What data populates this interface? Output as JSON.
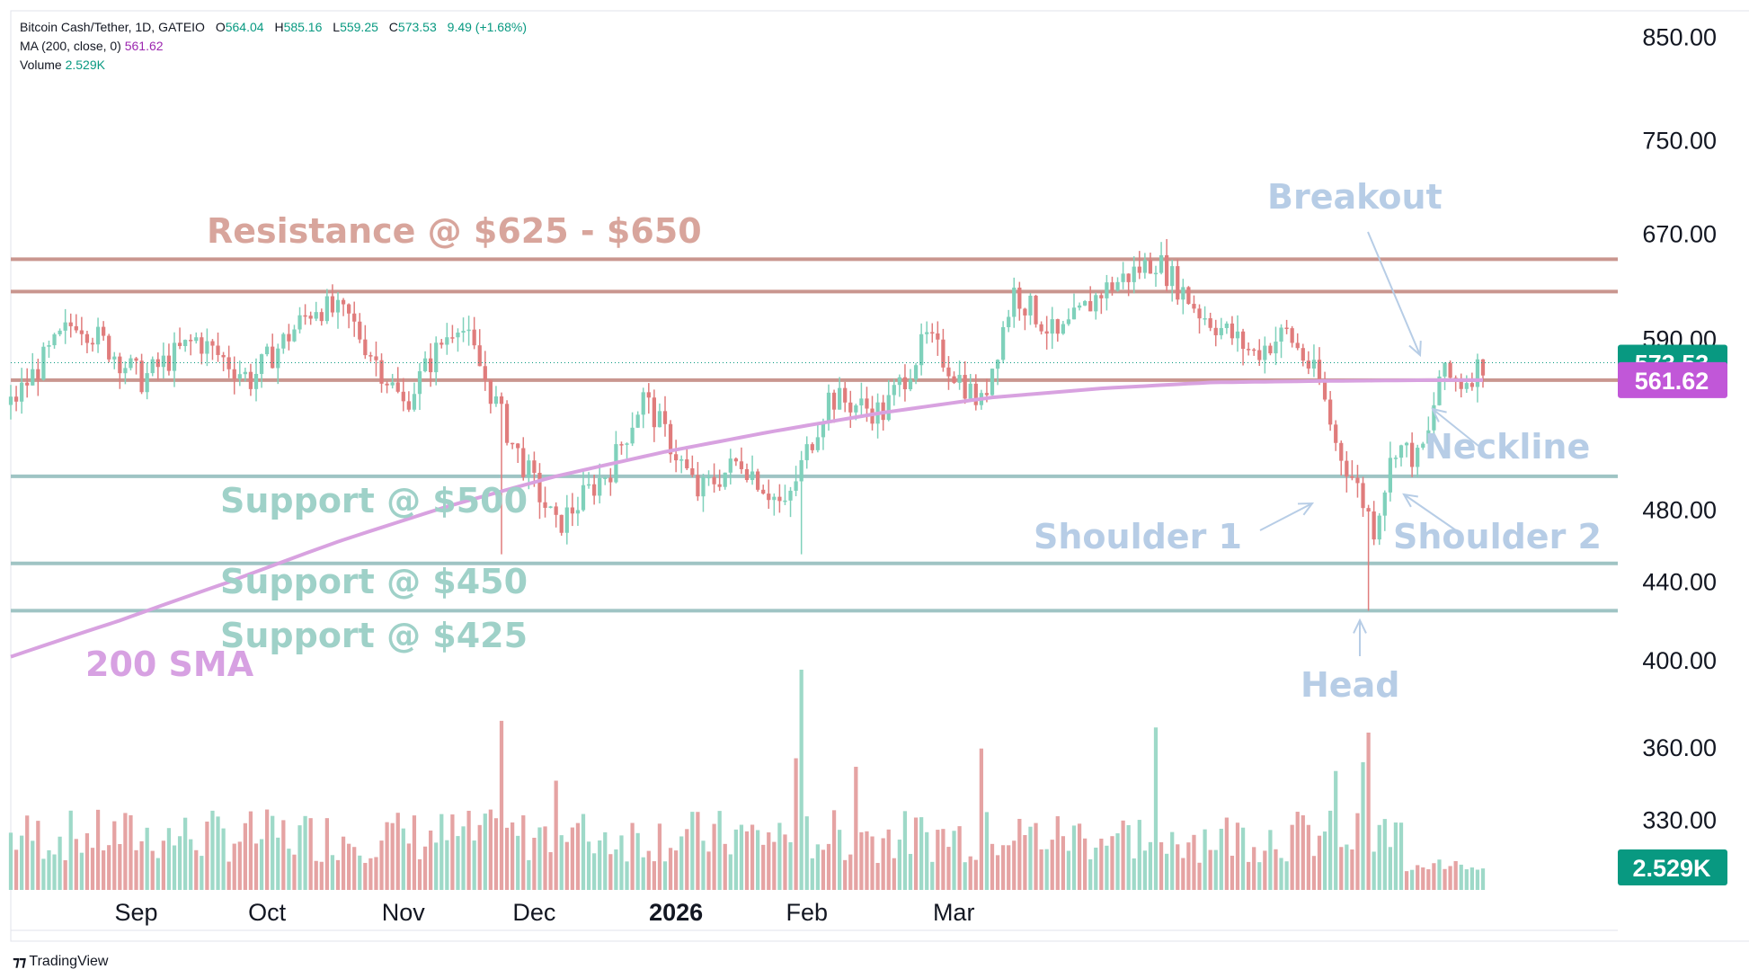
{
  "legend": {
    "symbol": "Bitcoin Cash/Tether, 1D, GATEIO",
    "o_label": "O",
    "o": "564.04",
    "h_label": "H",
    "h": "585.16",
    "l_label": "L",
    "l": "559.25",
    "c_label": "C",
    "c": "573.53",
    "change": "9.49 (+1.68%)",
    "ma_label": "MA (200, close, 0)",
    "ma_value": "561.62",
    "volume_label": "Volume",
    "volume_value": "2.529K"
  },
  "branding": {
    "logo_text": "TradingView"
  },
  "colors": {
    "up": "#7fd1bb",
    "down": "#e07c7c",
    "up_vol": "#9ed9c8",
    "down_vol": "#e5a3a3",
    "resistance": "#c9968f",
    "support": "#9fc4c4",
    "sma": "#d8a2e0",
    "annotation_blue": "#b7cde6",
    "annotation_red": "#d8a59c",
    "annotation_green": "#9fd1c8",
    "annotation_purple": "#d7a1e2",
    "price_tag_green": "#089981",
    "price_tag_purple": "#c157d8",
    "volume_tag": "#089981",
    "axis_text": "#131722"
  },
  "chart_data": {
    "type": "candlestick",
    "title": "Bitcoin Cash/Tether, 1D, GATEIO",
    "x_axis": {
      "ticks": [
        "Sep",
        "Oct",
        "Nov",
        "Dec",
        "2026",
        "Feb",
        "Mar"
      ]
    },
    "y_axis": {
      "scale": "log",
      "ticks": [
        "850.00",
        "750.00",
        "670.00",
        "590.00",
        "480.00",
        "440.00",
        "400.00",
        "360.00",
        "330.00"
      ],
      "range": [
        300,
        870
      ]
    },
    "last_price": {
      "value": 573.53,
      "label": "573.53"
    },
    "sma_tag": {
      "value": 561.62,
      "label": "561.62"
    },
    "volume_tag": {
      "label": "2.529K"
    },
    "horizontal_levels": [
      {
        "name": "resistance-upper",
        "value": 650,
        "kind": "resistance"
      },
      {
        "name": "resistance-lower",
        "value": 625,
        "kind": "resistance"
      },
      {
        "name": "neckline",
        "value": 561.62,
        "kind": "resistance"
      },
      {
        "name": "support-500",
        "value": 500,
        "kind": "support"
      },
      {
        "name": "support-450",
        "value": 450,
        "kind": "support"
      },
      {
        "name": "support-425",
        "value": 425,
        "kind": "support"
      }
    ],
    "annotations": [
      {
        "name": "resistance-label",
        "text": "Resistance @ $625 - $650",
        "color": "red"
      },
      {
        "name": "support-500-label",
        "text": "Support @ $500",
        "color": "green"
      },
      {
        "name": "support-450-label",
        "text": "Support @ $450",
        "color": "green"
      },
      {
        "name": "support-425-label",
        "text": "Support @ $425",
        "color": "green"
      },
      {
        "name": "sma-label",
        "text": "200 SMA",
        "color": "purple"
      },
      {
        "name": "breakout-label",
        "text": "Breakout",
        "color": "blue"
      },
      {
        "name": "neckline-label",
        "text": "Neckline",
        "color": "blue"
      },
      {
        "name": "shoulder1-label",
        "text": "Shoulder 1",
        "color": "blue"
      },
      {
        "name": "shoulder2-label",
        "text": "Shoulder 2",
        "color": "blue"
      },
      {
        "name": "head-label",
        "text": "Head",
        "color": "blue"
      }
    ],
    "sma_anchors": [
      {
        "day": 0,
        "value": 402
      },
      {
        "day": 20,
        "value": 420
      },
      {
        "day": 40,
        "value": 440
      },
      {
        "day": 60,
        "value": 462
      },
      {
        "day": 80,
        "value": 482
      },
      {
        "day": 100,
        "value": 500
      },
      {
        "day": 120,
        "value": 515
      },
      {
        "day": 140,
        "value": 528
      },
      {
        "day": 160,
        "value": 540
      },
      {
        "day": 180,
        "value": 550
      },
      {
        "day": 200,
        "value": 556
      },
      {
        "day": 220,
        "value": 560
      },
      {
        "day": 240,
        "value": 561
      },
      {
        "day": 260,
        "value": 561.6
      }
    ],
    "candle_anchors": [
      {
        "day": 0,
        "value": 545
      },
      {
        "day": 12,
        "value": 605
      },
      {
        "day": 24,
        "value": 562
      },
      {
        "day": 34,
        "value": 590
      },
      {
        "day": 44,
        "value": 562
      },
      {
        "day": 56,
        "value": 615
      },
      {
        "day": 62,
        "value": 605
      },
      {
        "day": 72,
        "value": 545
      },
      {
        "day": 82,
        "value": 605
      },
      {
        "day": 92,
        "value": 520
      },
      {
        "day": 100,
        "value": 470
      },
      {
        "day": 110,
        "value": 505
      },
      {
        "day": 116,
        "value": 550
      },
      {
        "day": 126,
        "value": 490
      },
      {
        "day": 134,
        "value": 510
      },
      {
        "day": 142,
        "value": 480
      },
      {
        "day": 150,
        "value": 550
      },
      {
        "day": 160,
        "value": 540
      },
      {
        "day": 168,
        "value": 590
      },
      {
        "day": 178,
        "value": 545
      },
      {
        "day": 184,
        "value": 625
      },
      {
        "day": 192,
        "value": 590
      },
      {
        "day": 200,
        "value": 625
      },
      {
        "day": 210,
        "value": 650
      },
      {
        "day": 218,
        "value": 610
      },
      {
        "day": 228,
        "value": 580
      },
      {
        "day": 234,
        "value": 595
      },
      {
        "day": 240,
        "value": 560
      },
      {
        "day": 243,
        "value": 520
      },
      {
        "day": 246,
        "value": 500
      },
      {
        "day": 250,
        "value": 470
      },
      {
        "day": 254,
        "value": 520
      },
      {
        "day": 258,
        "value": 510
      },
      {
        "day": 260,
        "value": 525
      },
      {
        "day": 262,
        "value": 565
      },
      {
        "day": 266,
        "value": 560
      },
      {
        "day": 270,
        "value": 573.53
      }
    ],
    "volume_bars_count": 271
  }
}
